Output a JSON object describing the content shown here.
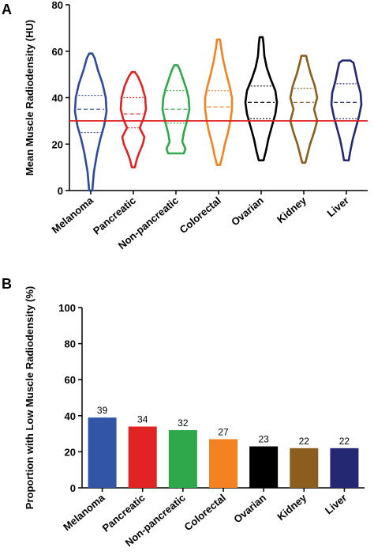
{
  "chart_data": [
    {
      "type": "violin",
      "panel_label": "A",
      "ylabel": "Mean Muscle Radiodensity (HU)",
      "ylim": [
        0,
        80
      ],
      "yticks": [
        0,
        20,
        40,
        60,
        80
      ],
      "reference_line": {
        "y": 30,
        "color": "#e02020"
      },
      "categories": [
        "Melanoma",
        "Pancreatic",
        "Non-pancreatic",
        "Colorectal",
        "Ovarian",
        "Kidney",
        "Liver"
      ],
      "series": [
        {
          "category": "Melanoma",
          "color": "#2e4a9e",
          "min": 0,
          "max": 59,
          "q1": 25,
          "median": 35,
          "q3": 41,
          "profile": [
            [
              0,
              2
            ],
            [
              8,
              4
            ],
            [
              16,
              8
            ],
            [
              22,
              12
            ],
            [
              28,
              17
            ],
            [
              34,
              20
            ],
            [
              40,
              19
            ],
            [
              46,
              15
            ],
            [
              52,
              9
            ],
            [
              57,
              5
            ],
            [
              59,
              2
            ]
          ]
        },
        {
          "category": "Pancreatic",
          "color": "#e02424",
          "min": 10,
          "max": 51,
          "q1": 27,
          "median": 33,
          "q3": 40,
          "profile": [
            [
              10,
              2
            ],
            [
              13,
              4
            ],
            [
              16,
              7
            ],
            [
              20,
              12
            ],
            [
              23,
              14
            ],
            [
              27,
              8
            ],
            [
              31,
              13
            ],
            [
              35,
              16
            ],
            [
              40,
              15
            ],
            [
              45,
              11
            ],
            [
              49,
              6
            ],
            [
              51,
              2
            ]
          ]
        },
        {
          "category": "Non-pancreatic",
          "color": "#2ea84a",
          "min": 16,
          "max": 54,
          "q1": 29,
          "median": 35,
          "q3": 43,
          "profile": [
            [
              16,
              10
            ],
            [
              18,
              12
            ],
            [
              21,
              8
            ],
            [
              25,
              10
            ],
            [
              30,
              14
            ],
            [
              35,
              17
            ],
            [
              40,
              16
            ],
            [
              44,
              13
            ],
            [
              48,
              9
            ],
            [
              52,
              5
            ],
            [
              54,
              2
            ]
          ]
        },
        {
          "category": "Colorectal",
          "color": "#f58220",
          "min": 11,
          "max": 65,
          "q1": 30,
          "median": 36,
          "q3": 43,
          "profile": [
            [
              11,
              2
            ],
            [
              15,
              5
            ],
            [
              20,
              8
            ],
            [
              25,
              12
            ],
            [
              30,
              15
            ],
            [
              35,
              17
            ],
            [
              40,
              17
            ],
            [
              45,
              14
            ],
            [
              50,
              10
            ],
            [
              56,
              6
            ],
            [
              62,
              3
            ],
            [
              65,
              2
            ]
          ]
        },
        {
          "category": "Ovarian",
          "color": "#000000",
          "min": 13,
          "max": 66,
          "q1": 31,
          "median": 38,
          "q3": 45,
          "profile": [
            [
              13,
              3
            ],
            [
              17,
              6
            ],
            [
              22,
              9
            ],
            [
              27,
              13
            ],
            [
              33,
              18
            ],
            [
              38,
              20
            ],
            [
              43,
              18
            ],
            [
              48,
              12
            ],
            [
              53,
              7
            ],
            [
              58,
              4
            ],
            [
              63,
              3
            ],
            [
              66,
              2
            ]
          ]
        },
        {
          "category": "Kidney",
          "color": "#8b5e1f",
          "min": 12,
          "max": 58,
          "q1": 30,
          "median": 38,
          "q3": 44,
          "profile": [
            [
              12,
              2
            ],
            [
              16,
              5
            ],
            [
              20,
              8
            ],
            [
              25,
              13
            ],
            [
              30,
              17
            ],
            [
              35,
              13
            ],
            [
              40,
              17
            ],
            [
              45,
              14
            ],
            [
              50,
              9
            ],
            [
              55,
              5
            ],
            [
              58,
              3
            ]
          ]
        },
        {
          "category": "Liver",
          "color": "#242873",
          "min": 13,
          "max": 56,
          "q1": 31,
          "median": 38,
          "q3": 46,
          "profile": [
            [
              13,
              3
            ],
            [
              17,
              5
            ],
            [
              22,
              8
            ],
            [
              27,
              12
            ],
            [
              32,
              16
            ],
            [
              37,
              19
            ],
            [
              42,
              18
            ],
            [
              47,
              14
            ],
            [
              52,
              11
            ],
            [
              55,
              9
            ],
            [
              56,
              5
            ]
          ]
        }
      ]
    },
    {
      "type": "bar",
      "panel_label": "B",
      "ylabel": "Proportion with Low Muscle Radiodensity (%)",
      "ylim": [
        0,
        100
      ],
      "yticks": [
        0,
        20,
        40,
        60,
        80,
        100
      ],
      "categories": [
        "Melanoma",
        "Pancreatic",
        "Non-pancreatic",
        "Colorectal",
        "Ovarian",
        "Kidney",
        "Liver"
      ],
      "values": [
        39,
        34,
        32,
        27,
        23,
        22,
        22
      ],
      "data_labels": [
        "39",
        "34",
        "32",
        "27",
        "23",
        "22",
        "22"
      ],
      "colors": [
        "#3355a6",
        "#e02424",
        "#2ea84a",
        "#f58220",
        "#000000",
        "#8b5e1f",
        "#242873"
      ]
    }
  ]
}
